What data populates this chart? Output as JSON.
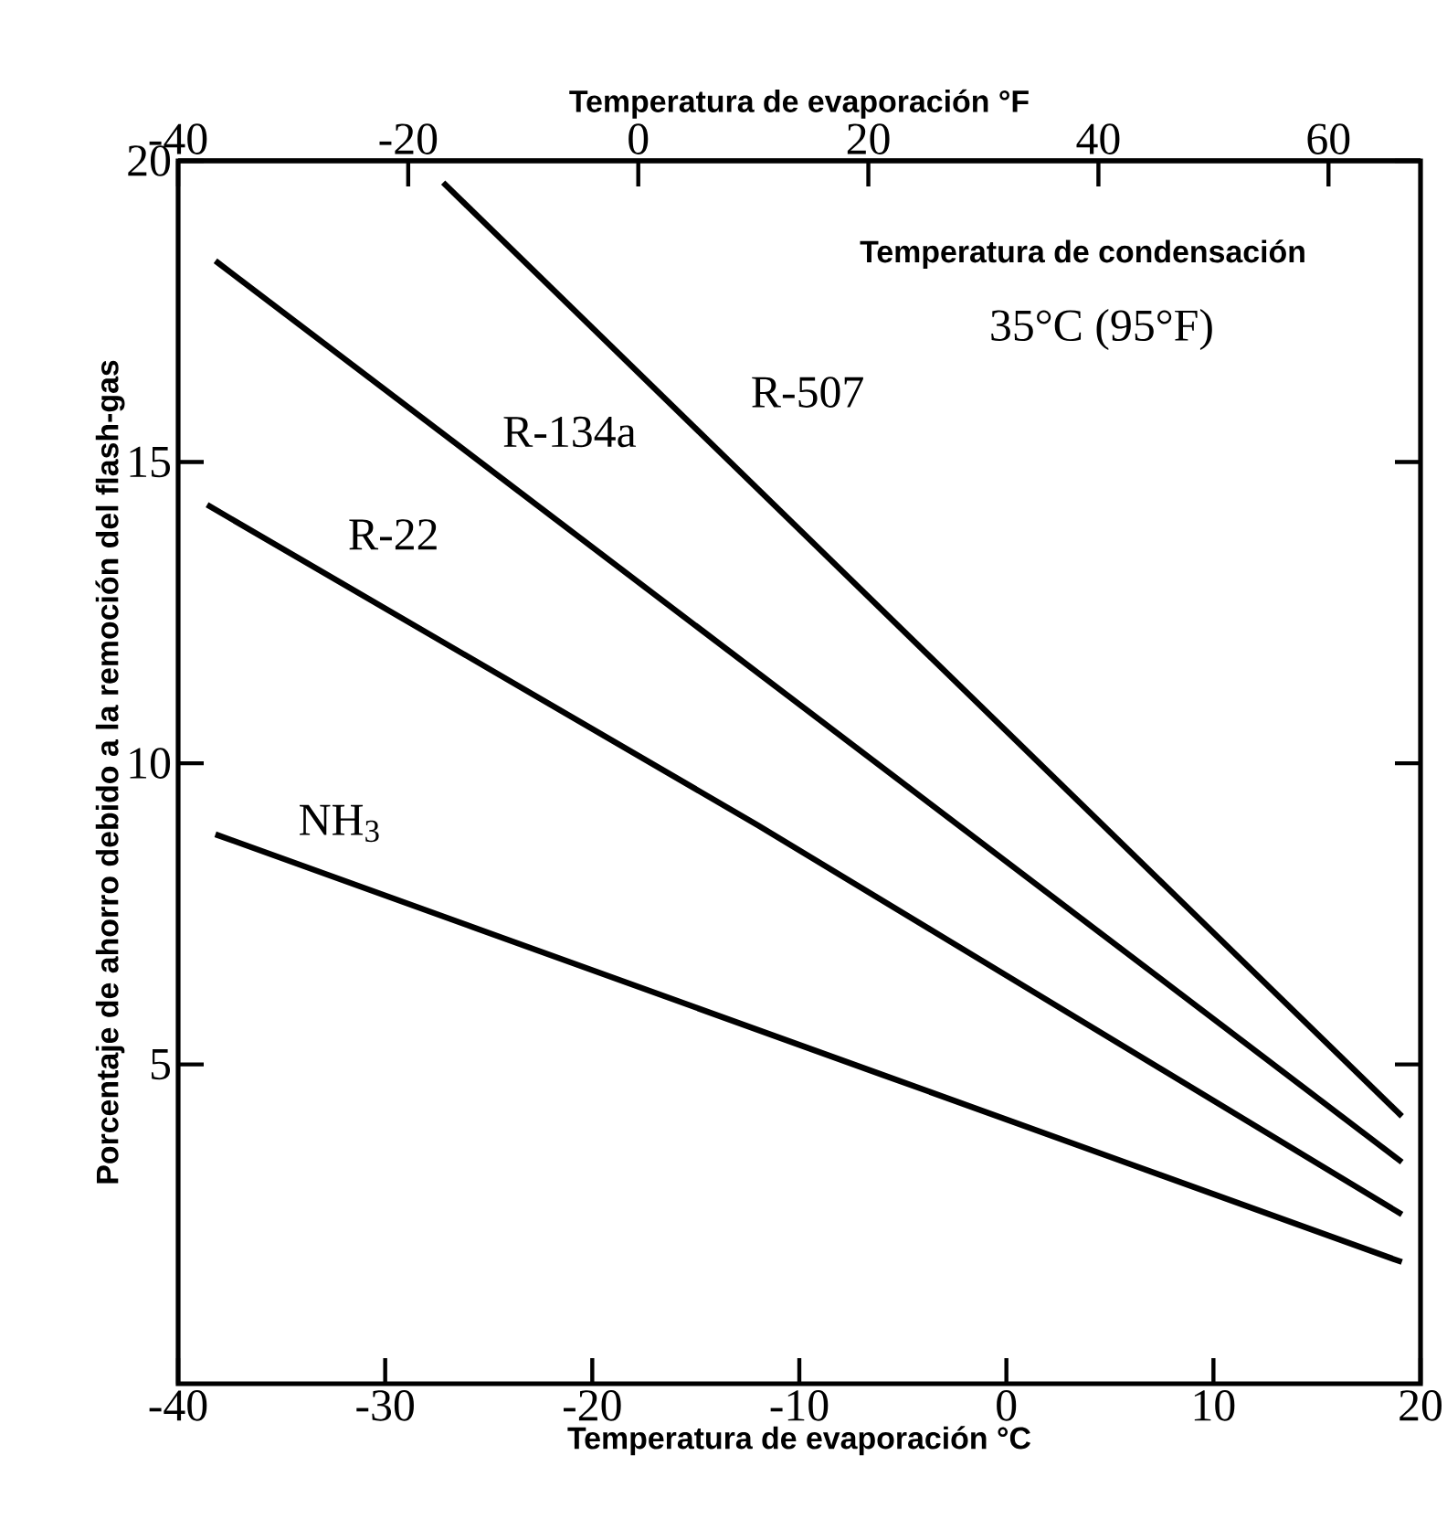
{
  "chart_data": {
    "type": "line",
    "xlabel": "Temperatura de evaporación °C",
    "x2label": "Temperatura de evaporación °F",
    "ylabel": "Porcentaje de ahorro debido a la remoción del flash-gas",
    "xlim": [
      -40,
      20
    ],
    "xticks": [
      -40,
      -30,
      -20,
      -10,
      0,
      10,
      20
    ],
    "x2lim": [
      -40,
      68
    ],
    "x2ticks": [
      -40,
      -20,
      0,
      20,
      40,
      60
    ],
    "ylim": [
      -0.3,
      20
    ],
    "yticks": [
      5,
      10,
      15,
      20
    ],
    "grid": false,
    "legend": false,
    "marker": "none",
    "line_style": "solid",
    "annotations": [
      "Temperatura de condensación",
      "35°C (95°F)"
    ],
    "series": [
      {
        "name": "R-507",
        "color": "#000000",
        "x": [
          -27.2,
          19.1
        ],
        "values": [
          19.64,
          4.14
        ]
      },
      {
        "name": "R-134a",
        "color": "#000000",
        "x": [
          -38.2,
          19.1
        ],
        "values": [
          18.34,
          3.38
        ]
      },
      {
        "name": "R-22",
        "color": "#000000",
        "x": [
          -38.6,
          -12.0,
          19.1
        ],
        "values": [
          14.29,
          8.97,
          2.51
        ]
      },
      {
        "name": "NH$_{3}$",
        "color": "#000000",
        "x": [
          -38.2,
          -6.0,
          19.1
        ],
        "values": [
          8.82,
          4.83,
          1.72
        ]
      }
    ]
  }
}
